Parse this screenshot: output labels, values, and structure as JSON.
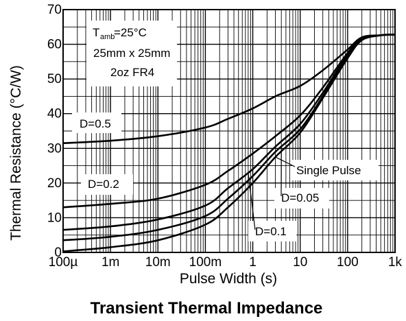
{
  "chart_data": {
    "type": "line",
    "title": "Transient Thermal Impedance",
    "xlabel": "Pulse Width (s)",
    "ylabel": "Thermal Resistance (°C/W)",
    "xscale": "log",
    "xlim": [
      0.0001,
      1000
    ],
    "ylim": [
      0,
      70
    ],
    "grid": true,
    "x_ticks": [
      {
        "value": 0.0001,
        "label": "100µ"
      },
      {
        "value": 0.001,
        "label": "1m"
      },
      {
        "value": 0.01,
        "label": "10m"
      },
      {
        "value": 0.1,
        "label": "100m"
      },
      {
        "value": 1,
        "label": "1"
      },
      {
        "value": 10,
        "label": "10"
      },
      {
        "value": 100,
        "label": "100"
      },
      {
        "value": 1000,
        "label": "1k"
      }
    ],
    "y_ticks": [
      {
        "value": 0,
        "label": "0"
      },
      {
        "value": 10,
        "label": "10"
      },
      {
        "value": 20,
        "label": "20"
      },
      {
        "value": 30,
        "label": "30"
      },
      {
        "value": 40,
        "label": "40"
      },
      {
        "value": 50,
        "label": "50"
      },
      {
        "value": 60,
        "label": "60"
      },
      {
        "value": 70,
        "label": "70"
      }
    ],
    "conditions": {
      "t_symbol": "T",
      "t_sub": "amb",
      "t_value": "=25°C",
      "size": "25mm x 25mm",
      "board": "2oz FR4"
    },
    "series": [
      {
        "name": "D=0.5",
        "points": [
          [
            0.0001,
            31.5
          ],
          [
            0.001,
            32.2
          ],
          [
            0.01,
            33.5
          ],
          [
            0.1,
            36
          ],
          [
            0.3,
            38.5
          ],
          [
            1,
            41.5
          ],
          [
            3,
            45
          ],
          [
            10,
            48
          ],
          [
            30,
            52.5
          ],
          [
            100,
            58.5
          ],
          [
            200,
            62
          ],
          [
            500,
            62.6
          ],
          [
            1000,
            62.8
          ]
        ]
      },
      {
        "name": "D=0.2",
        "points": [
          [
            0.0001,
            13
          ],
          [
            0.001,
            14
          ],
          [
            0.01,
            15.5
          ],
          [
            0.1,
            19.5
          ],
          [
            0.3,
            23.5
          ],
          [
            1,
            28.5
          ],
          [
            3,
            33.5
          ],
          [
            10,
            39.5
          ],
          [
            30,
            47.5
          ],
          [
            100,
            57.5
          ],
          [
            200,
            61.5
          ],
          [
            500,
            62.6
          ],
          [
            1000,
            62.8
          ]
        ]
      },
      {
        "name": "D=0.1",
        "points": [
          [
            0.0001,
            6.5
          ],
          [
            0.001,
            7.5
          ],
          [
            0.01,
            9.5
          ],
          [
            0.1,
            13.5
          ],
          [
            0.3,
            18.5
          ],
          [
            1,
            24
          ],
          [
            3,
            30.5
          ],
          [
            10,
            37
          ],
          [
            30,
            46
          ],
          [
            100,
            57
          ],
          [
            200,
            61.5
          ],
          [
            500,
            62.6
          ],
          [
            1000,
            62.8
          ]
        ]
      },
      {
        "name": "D=0.05",
        "points": [
          [
            0.0001,
            3.5
          ],
          [
            0.001,
            4.5
          ],
          [
            0.01,
            6.5
          ],
          [
            0.1,
            10.5
          ],
          [
            0.3,
            15.5
          ],
          [
            1,
            22
          ],
          [
            3,
            29
          ],
          [
            10,
            35.5
          ],
          [
            30,
            45
          ],
          [
            100,
            56.5
          ],
          [
            200,
            61.3
          ],
          [
            500,
            62.6
          ],
          [
            1000,
            62.8
          ]
        ]
      },
      {
        "name": "Single Pulse",
        "points": [
          [
            0.0001,
            0.3
          ],
          [
            0.001,
            1.5
          ],
          [
            0.01,
            3.5
          ],
          [
            0.1,
            8
          ],
          [
            0.3,
            13
          ],
          [
            1,
            20
          ],
          [
            3,
            27.5
          ],
          [
            10,
            34.5
          ],
          [
            30,
            44.5
          ],
          [
            100,
            56
          ],
          [
            200,
            61.2
          ],
          [
            500,
            62.6
          ],
          [
            1000,
            62.8
          ]
        ]
      }
    ],
    "annotations": {
      "d05": "D=0.5",
      "d02": "D=0.2",
      "d01": "D=0.1",
      "d005": "D=0.05",
      "single": "Single Pulse"
    },
    "colors": {
      "line": "#000000",
      "grid": "#000000",
      "background": "#ffffff"
    }
  }
}
